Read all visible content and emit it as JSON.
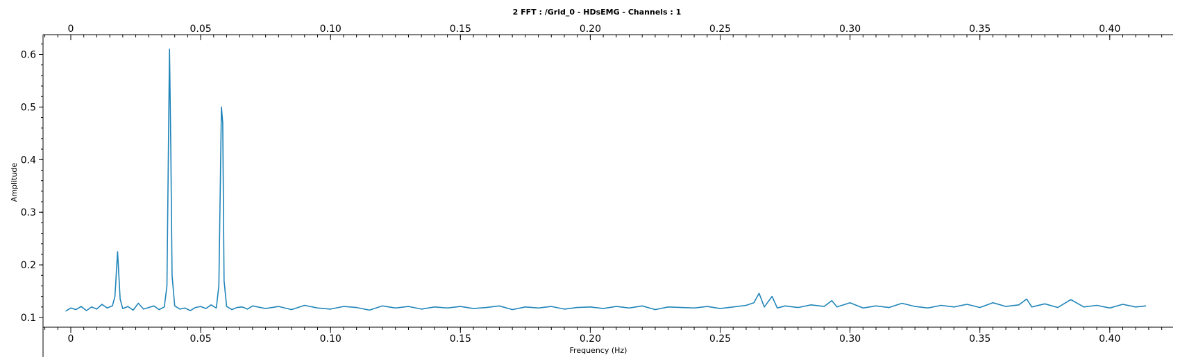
{
  "chart_data": {
    "type": "line",
    "title": "2 FFT : /Grid_0 - HDsEMG - Channels : 1",
    "xlabel": "Frequency (Hz)",
    "ylabel": "Amplitude",
    "xlim": [
      -0.01,
      0.42
    ],
    "ylim": [
      0.09,
      0.64
    ],
    "x_ticks": [
      {
        "value": 0,
        "label": "0"
      },
      {
        "value": 0.05,
        "label": "0.05"
      },
      {
        "value": 0.1,
        "label": "0.10"
      },
      {
        "value": 0.15,
        "label": "0.15"
      },
      {
        "value": 0.2,
        "label": "0.20"
      },
      {
        "value": 0.25,
        "label": "0.25"
      },
      {
        "value": 0.3,
        "label": "0.30"
      },
      {
        "value": 0.35,
        "label": "0.35"
      },
      {
        "value": 0.4,
        "label": "0.40"
      }
    ],
    "y_ticks": [
      {
        "value": 0.1,
        "label": "0.1"
      },
      {
        "value": 0.2,
        "label": "0.2"
      },
      {
        "value": 0.3,
        "label": "0.3"
      },
      {
        "value": 0.4,
        "label": "0.4"
      },
      {
        "value": 0.5,
        "label": "0.5"
      },
      {
        "value": 0.6,
        "label": "0.6"
      }
    ],
    "grid": false,
    "line_color": "#1f84b9",
    "series": [
      {
        "x": [
          -0.002,
          0.0,
          0.002,
          0.004,
          0.006,
          0.008,
          0.01,
          0.012,
          0.014,
          0.016,
          0.017,
          0.018,
          0.019,
          0.02,
          0.022,
          0.024,
          0.026,
          0.028,
          0.03,
          0.032,
          0.034,
          0.036,
          0.037,
          0.038,
          0.0385,
          0.039,
          0.04,
          0.042,
          0.044,
          0.046,
          0.048,
          0.05,
          0.052,
          0.054,
          0.056,
          0.057,
          0.058,
          0.0585,
          0.059,
          0.06,
          0.062,
          0.064,
          0.066,
          0.068,
          0.07,
          0.075,
          0.08,
          0.085,
          0.09,
          0.095,
          0.1,
          0.105,
          0.11,
          0.115,
          0.12,
          0.125,
          0.13,
          0.135,
          0.14,
          0.145,
          0.15,
          0.155,
          0.16,
          0.165,
          0.17,
          0.175,
          0.18,
          0.185,
          0.19,
          0.195,
          0.2,
          0.205,
          0.21,
          0.215,
          0.22,
          0.225,
          0.23,
          0.235,
          0.24,
          0.245,
          0.25,
          0.255,
          0.26,
          0.263,
          0.265,
          0.267,
          0.27,
          0.272,
          0.275,
          0.28,
          0.285,
          0.29,
          0.293,
          0.295,
          0.3,
          0.305,
          0.31,
          0.315,
          0.32,
          0.325,
          0.33,
          0.335,
          0.34,
          0.345,
          0.35,
          0.355,
          0.36,
          0.365,
          0.368,
          0.37,
          0.375,
          0.38,
          0.385,
          0.39,
          0.395,
          0.4,
          0.405,
          0.41,
          0.414
        ],
        "y": [
          0.112,
          0.118,
          0.115,
          0.121,
          0.113,
          0.12,
          0.116,
          0.125,
          0.118,
          0.122,
          0.14,
          0.225,
          0.135,
          0.117,
          0.121,
          0.114,
          0.127,
          0.116,
          0.119,
          0.122,
          0.115,
          0.12,
          0.16,
          0.61,
          0.42,
          0.18,
          0.122,
          0.116,
          0.118,
          0.113,
          0.119,
          0.121,
          0.117,
          0.124,
          0.118,
          0.16,
          0.5,
          0.47,
          0.17,
          0.121,
          0.115,
          0.119,
          0.12,
          0.116,
          0.122,
          0.117,
          0.121,
          0.115,
          0.123,
          0.118,
          0.116,
          0.121,
          0.119,
          0.114,
          0.122,
          0.118,
          0.121,
          0.116,
          0.12,
          0.118,
          0.121,
          0.117,
          0.119,
          0.122,
          0.115,
          0.12,
          0.118,
          0.121,
          0.116,
          0.119,
          0.12,
          0.117,
          0.121,
          0.118,
          0.122,
          0.115,
          0.12,
          0.119,
          0.118,
          0.121,
          0.117,
          0.12,
          0.123,
          0.128,
          0.146,
          0.12,
          0.14,
          0.118,
          0.122,
          0.119,
          0.124,
          0.121,
          0.132,
          0.12,
          0.128,
          0.118,
          0.122,
          0.119,
          0.127,
          0.121,
          0.118,
          0.123,
          0.12,
          0.125,
          0.119,
          0.128,
          0.121,
          0.124,
          0.135,
          0.12,
          0.126,
          0.119,
          0.134,
          0.12,
          0.123,
          0.118,
          0.125,
          0.12,
          0.122
        ]
      }
    ]
  }
}
